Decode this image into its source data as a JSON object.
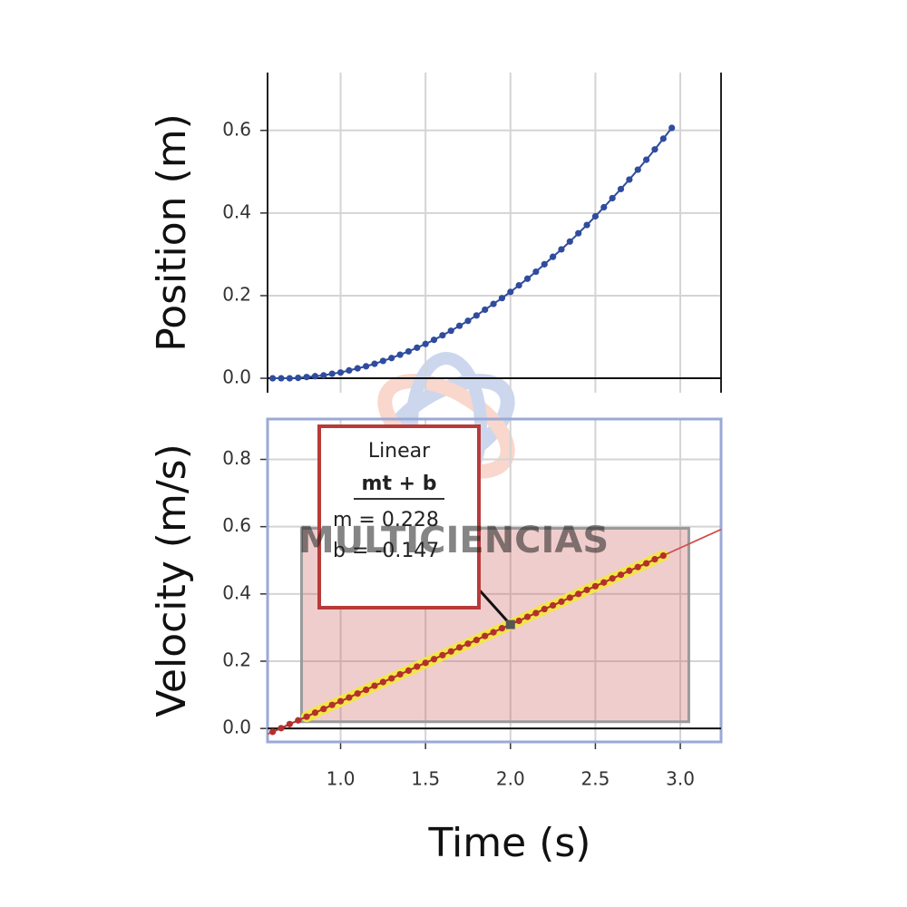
{
  "chart_data": [
    {
      "type": "line",
      "ylabel": "Position (m)",
      "color": "#2f4c9e",
      "grid": true,
      "xtick_labels": false,
      "xlim": [
        0.57,
        3.24
      ],
      "ylim": [
        -0.035,
        0.74
      ],
      "xticks": [
        {
          "value": 1,
          "label": "1.0"
        },
        1.5,
        {
          "value": 2,
          "label": "2.0"
        },
        2.5,
        {
          "value": 3,
          "label": "3.0"
        }
      ],
      "yticks": [
        {
          "value": 0,
          "label": "0.0"
        },
        0.2,
        0.4,
        0.6
      ],
      "x": [
        0.6,
        0.65,
        0.7,
        0.75,
        0.8,
        0.85,
        0.9,
        0.95,
        1.0,
        1.05,
        1.1,
        1.15,
        1.2,
        1.25,
        1.3,
        1.35,
        1.4,
        1.45,
        1.5,
        1.55,
        1.6,
        1.65,
        1.7,
        1.75,
        1.8,
        1.85,
        1.9,
        1.95,
        2.0,
        2.05,
        2.1,
        2.15,
        2.2,
        2.25,
        2.3,
        2.35,
        2.4,
        2.45,
        2.5,
        2.55,
        2.6,
        2.65,
        2.7,
        2.75,
        2.8,
        2.85,
        2.9,
        2.95
      ],
      "values": [
        0,
        0,
        0,
        0.001,
        0.003,
        0.005,
        0.007,
        0.011,
        0.014,
        0.019,
        0.024,
        0.029,
        0.035,
        0.042,
        0.049,
        0.057,
        0.065,
        0.074,
        0.083,
        0.093,
        0.104,
        0.115,
        0.127,
        0.139,
        0.152,
        0.166,
        0.18,
        0.194,
        0.209,
        0.225,
        0.241,
        0.258,
        0.276,
        0.294,
        0.312,
        0.331,
        0.351,
        0.371,
        0.392,
        0.414,
        0.436,
        0.458,
        0.481,
        0.505,
        0.529,
        0.554,
        0.58,
        0.606
      ]
    },
    {
      "type": "line",
      "ylabel": "Velocity (m/s)",
      "xlabel": "Time (s)",
      "color": "#b3302c",
      "highlight_color": "#f2e64a",
      "grid": true,
      "xtick_labels": true,
      "xlim": [
        0.57,
        3.24
      ],
      "ylim": [
        -0.04,
        0.92
      ],
      "xticks": [
        {
          "value": 1,
          "label": "1.0"
        },
        1.5,
        {
          "value": 2,
          "label": "2.0"
        },
        2.5,
        {
          "value": 3,
          "label": "3.0"
        }
      ],
      "yticks": [
        {
          "value": 0,
          "label": "0.0"
        },
        0.2,
        0.4,
        0.6,
        0.8
      ],
      "x": [
        0.6,
        0.65,
        0.7,
        0.75,
        0.8,
        0.85,
        0.9,
        0.95,
        1.0,
        1.05,
        1.1,
        1.15,
        1.2,
        1.25,
        1.3,
        1.35,
        1.4,
        1.45,
        1.5,
        1.55,
        1.6,
        1.65,
        1.7,
        1.75,
        1.8,
        1.85,
        1.9,
        1.95,
        2.0,
        2.05,
        2.1,
        2.15,
        2.2,
        2.25,
        2.3,
        2.35,
        2.4,
        2.45,
        2.5,
        2.55,
        2.6,
        2.65,
        2.7,
        2.75,
        2.8,
        2.85,
        2.9
      ],
      "values": [
        -0.01,
        0.001,
        0.013,
        0.024,
        0.035,
        0.047,
        0.058,
        0.07,
        0.081,
        0.092,
        0.104,
        0.115,
        0.127,
        0.138,
        0.149,
        0.161,
        0.172,
        0.184,
        0.195,
        0.206,
        0.218,
        0.229,
        0.241,
        0.252,
        0.263,
        0.275,
        0.286,
        0.298,
        0.309,
        0.32,
        0.332,
        0.343,
        0.355,
        0.366,
        0.377,
        0.389,
        0.4,
        0.412,
        0.423,
        0.434,
        0.446,
        0.457,
        0.469,
        0.48,
        0.491,
        0.503,
        0.514
      ],
      "selection": {
        "x": [
          0.77,
          3.05
        ],
        "y": [
          0.02,
          0.595
        ]
      },
      "fit": {
        "name": "Linear",
        "formula": "mt + b",
        "m": 0.228,
        "b": -0.147,
        "m_label": "m = 0.228",
        "b_label": "b  = -0.147",
        "color": "#d0504c"
      }
    }
  ],
  "watermark": "MULTICIENCIAS"
}
